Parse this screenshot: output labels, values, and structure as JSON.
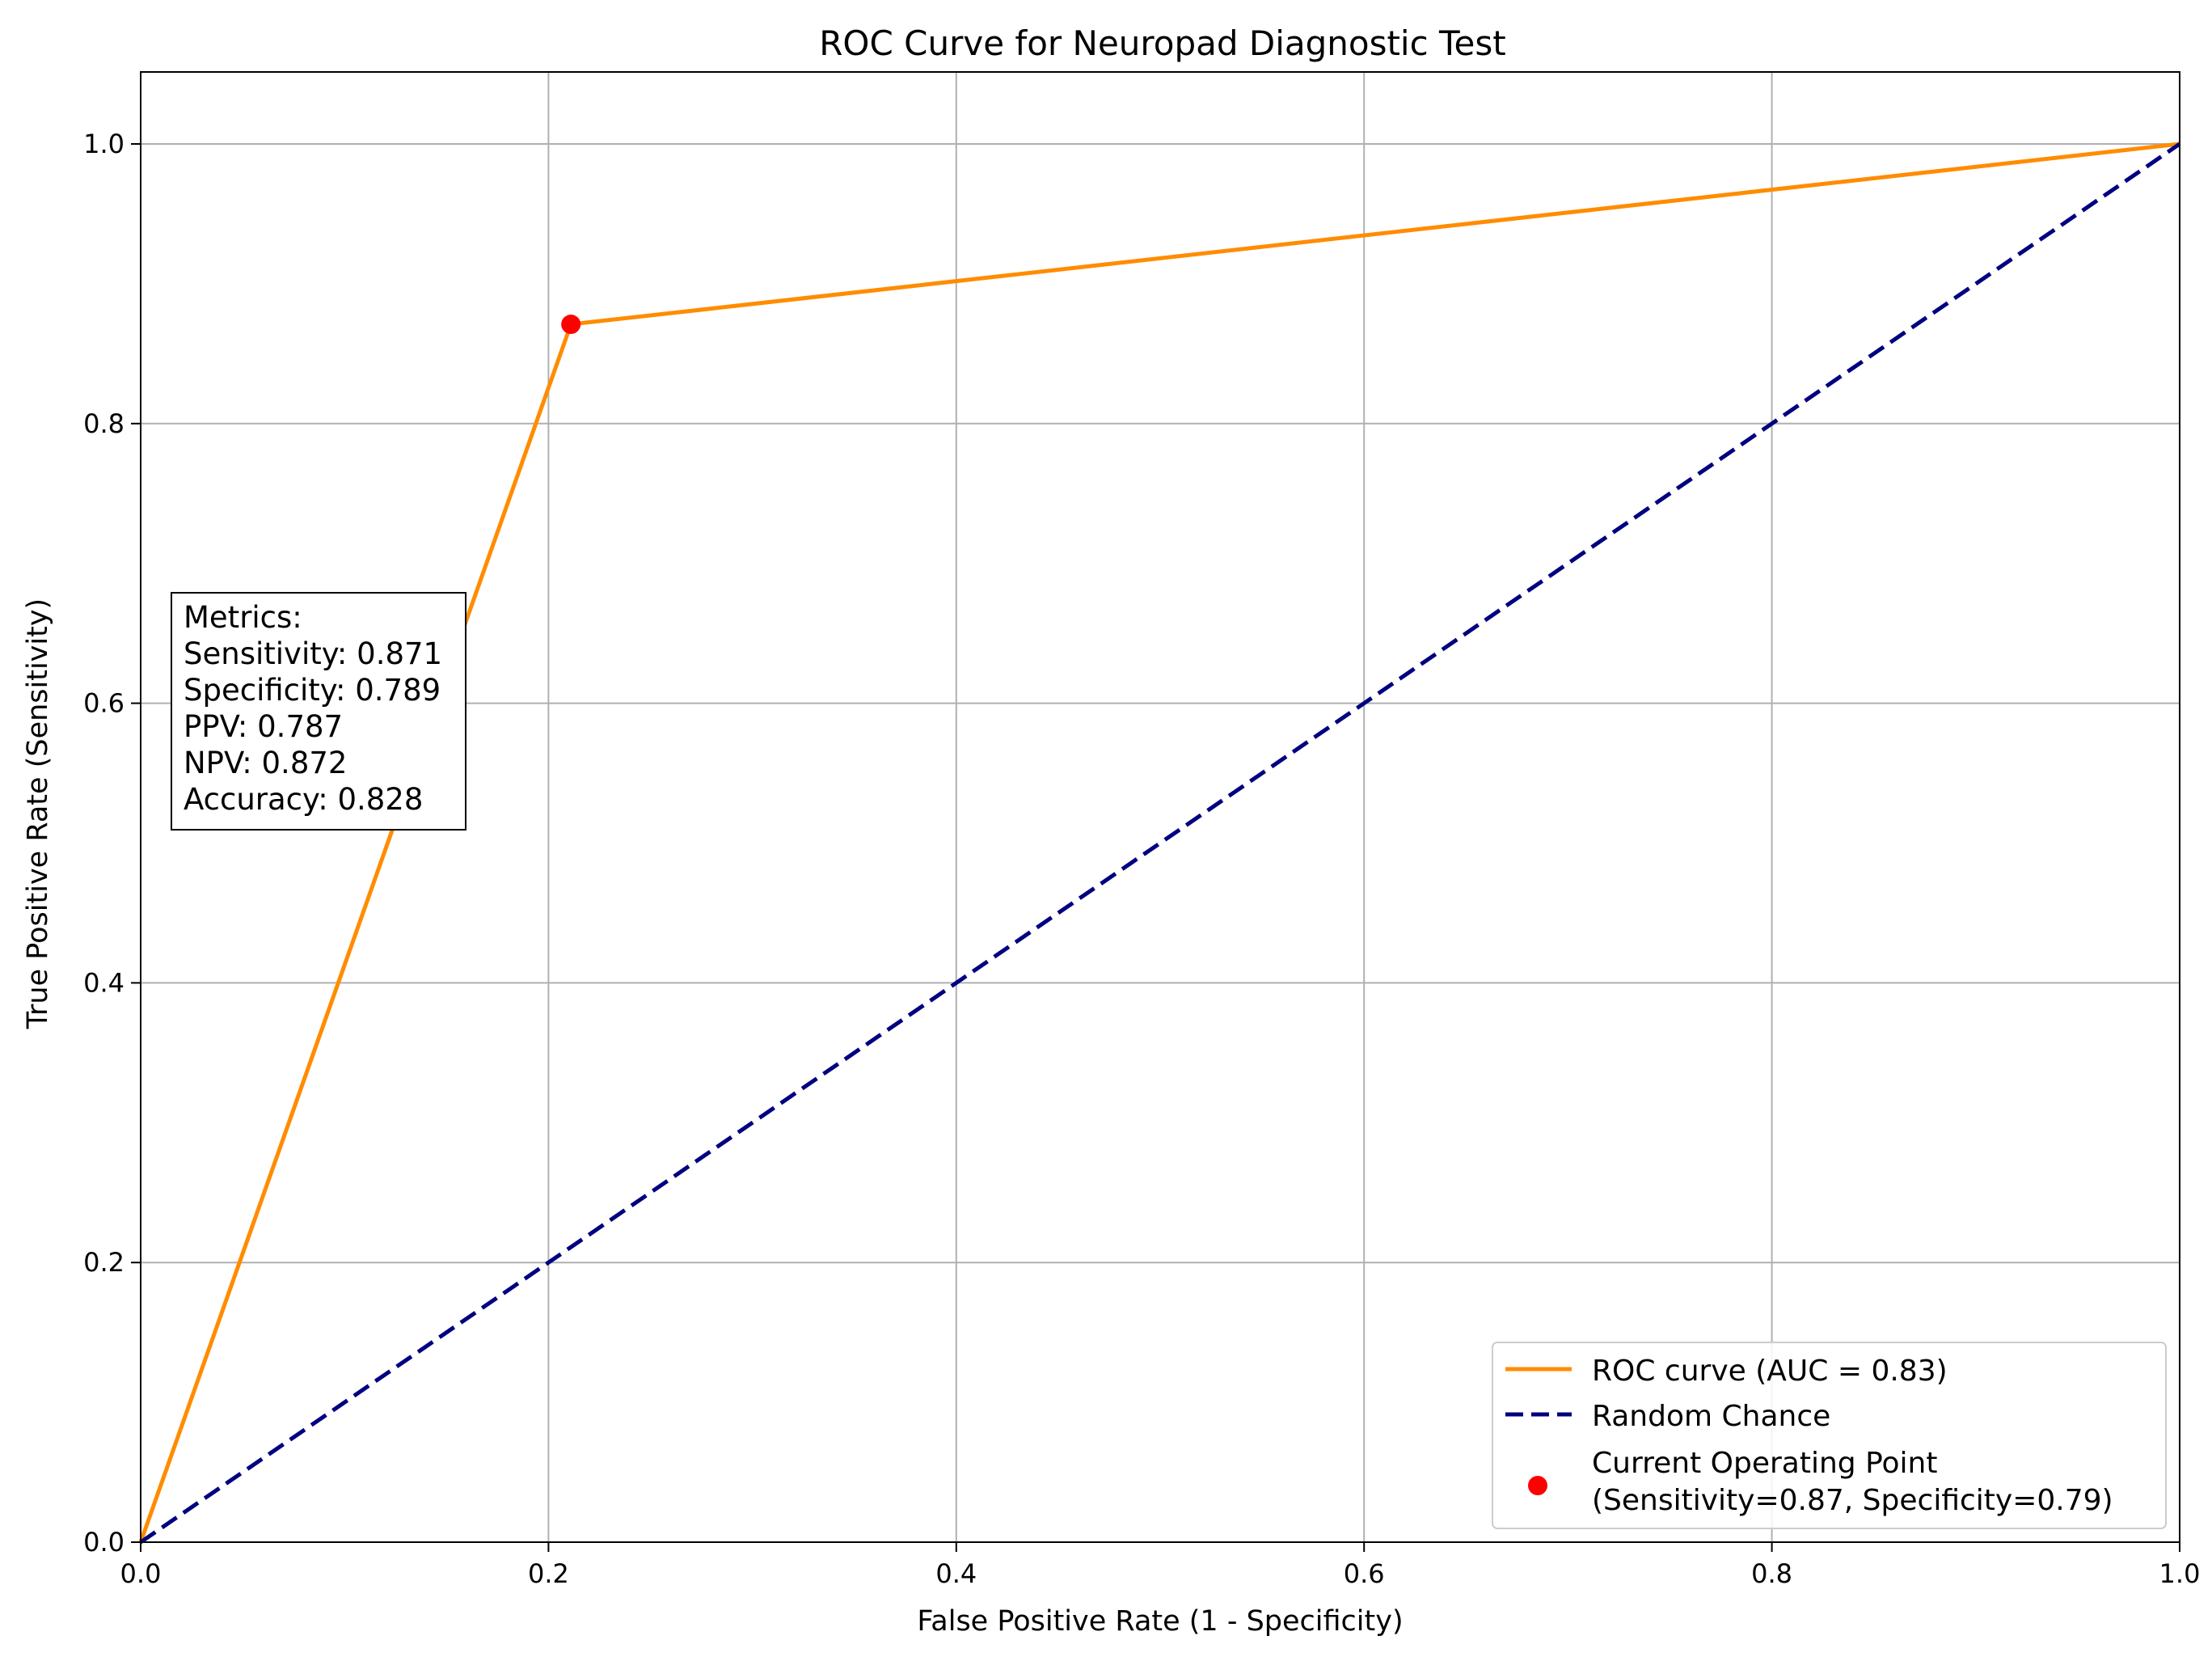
{
  "chart_data": {
    "type": "line",
    "title": "ROC Curve for Neuropad Diagnostic Test",
    "xlabel": "False Positive Rate (1 - Specificity)",
    "ylabel": "True Positive Rate (Sensitivity)",
    "xlim": [
      0.0,
      1.0
    ],
    "ylim": [
      0.0,
      1.0
    ],
    "grid": true,
    "x_ticks": [
      "0.0",
      "0.2",
      "0.4",
      "0.6",
      "0.8",
      "1.0"
    ],
    "y_ticks": [
      "0.0",
      "0.2",
      "0.4",
      "0.6",
      "0.8",
      "1.0"
    ],
    "series": [
      {
        "name": "ROC curve (AUC = 0.83)",
        "style": "solid",
        "color": "#ff8c00",
        "x": [
          0.0,
          0.211,
          1.0
        ],
        "y": [
          0.0,
          0.871,
          1.0
        ]
      },
      {
        "name": "Random Chance",
        "style": "dashed",
        "color": "#000080",
        "x": [
          0.0,
          1.0
        ],
        "y": [
          0.0,
          1.0
        ]
      }
    ],
    "points": [
      {
        "name": "Current Operating Point",
        "legend_lines": [
          "Current Operating Point",
          "(Sensitivity=0.87, Specificity=0.79)"
        ],
        "color": "#ff0000",
        "x": 0.211,
        "y": 0.871
      }
    ],
    "legend": {
      "placement": "lower-right",
      "entries": [
        {
          "label": "ROC curve (AUC = 0.83)",
          "kind": "line",
          "color": "#ff8c00"
        },
        {
          "label": "Random Chance",
          "kind": "dashed",
          "color": "#000080"
        },
        {
          "label": "Current Operating Point",
          "label2": "(Sensitivity=0.87, Specificity=0.79)",
          "kind": "marker",
          "color": "#ff0000"
        }
      ]
    },
    "annotation": {
      "placement": "left",
      "lines": [
        "Metrics:",
        "Sensitivity: 0.871",
        "Specificity: 0.789",
        "PPV: 0.787",
        "NPV: 0.872",
        "Accuracy: 0.828"
      ]
    }
  }
}
